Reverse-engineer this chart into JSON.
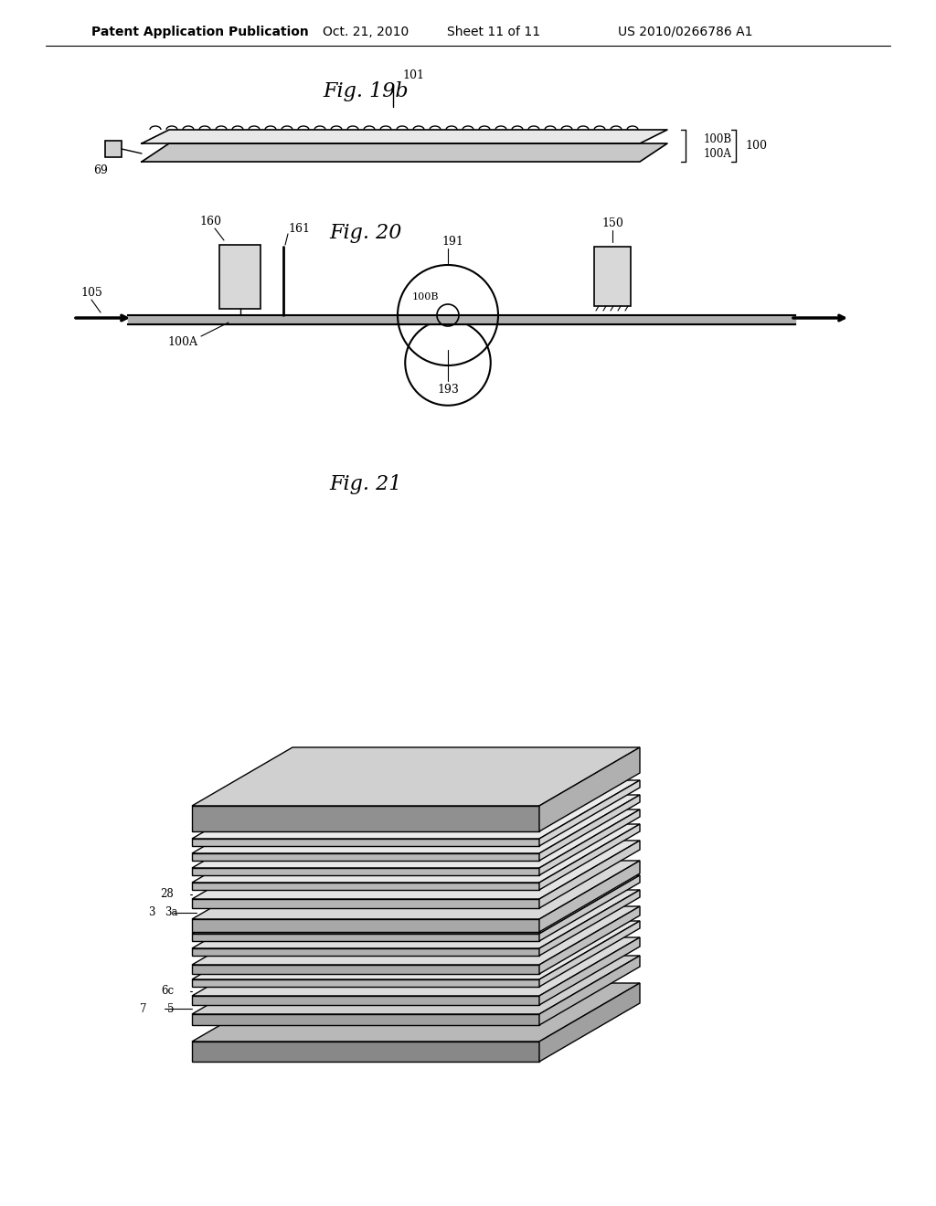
{
  "bg_color": "#ffffff",
  "header_text": "Patent Application Publication",
  "header_date": "Oct. 21, 2010",
  "header_sheet": "Sheet 11 of 11",
  "header_patent": "US 2010/0266786 A1",
  "fig19b_title": "Fig. 19b",
  "fig20_title": "Fig. 20",
  "fig21_title": "Fig. 21",
  "line_color": "#000000",
  "text_color": "#000000"
}
